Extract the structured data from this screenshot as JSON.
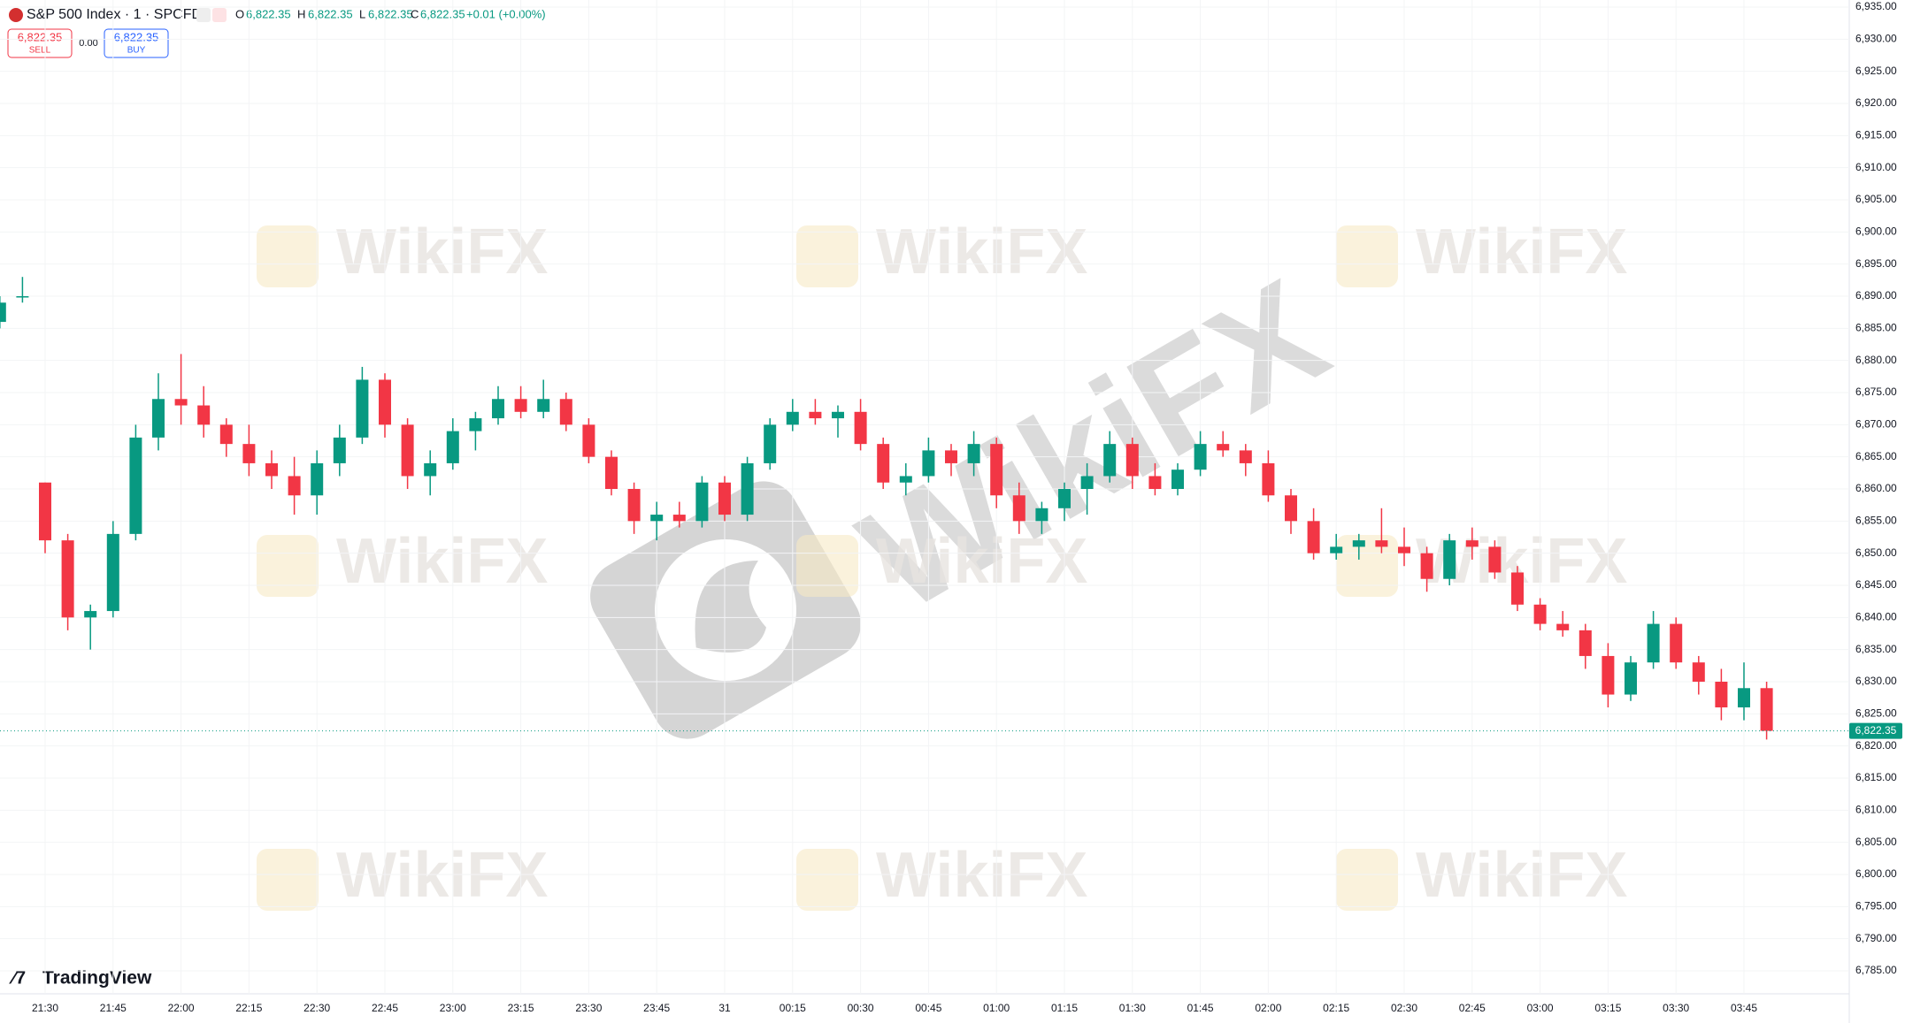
{
  "header": {
    "symbol": "S&P 500 Index · 1 · SPCFD",
    "o_key": "O",
    "open": "6,822.35",
    "h_key": "H",
    "high": "6,822.35",
    "l_key": "L",
    "low": "6,822.35",
    "c_key": "C",
    "close": "6,822.35",
    "change": "+0.01 (+0.00%)",
    "sell_price": "6,822.35",
    "sell": "SELL",
    "spread": "0.00",
    "buy_price": "6,822.35",
    "buy": "BUY"
  },
  "branding": {
    "logo": "TradingView",
    "watermark": "WikiFX"
  },
  "chart_data": {
    "type": "candlestick",
    "up_color": "#089981",
    "down_color": "#f23645",
    "grid": true,
    "last_price": {
      "value": 6822.35,
      "label": "6,822.35"
    },
    "x": [
      "21:20",
      "21:25",
      "21:30",
      "21:35",
      "21:40",
      "21:45",
      "21:50",
      "21:55",
      "22:00",
      "22:05",
      "22:10",
      "22:15",
      "22:20",
      "22:25",
      "22:30",
      "22:35",
      "22:40",
      "22:45",
      "22:50",
      "22:55",
      "23:00",
      "23:05",
      "23:10",
      "23:15",
      "23:20",
      "23:25",
      "23:30",
      "23:35",
      "23:40",
      "23:45",
      "23:50",
      "23:55",
      "00:00",
      "00:05",
      "00:10",
      "00:15",
      "00:20",
      "00:25",
      "00:30",
      "00:35",
      "00:40",
      "00:45",
      "00:50",
      "00:55",
      "01:00",
      "01:05",
      "01:10",
      "01:15",
      "01:20",
      "01:25",
      "01:30",
      "01:35",
      "01:40",
      "01:45",
      "01:50",
      "01:55",
      "02:00",
      "02:05",
      "02:10",
      "02:15",
      "02:20",
      "02:25",
      "02:30",
      "02:35",
      "02:40",
      "02:45",
      "02:50",
      "02:55",
      "03:00",
      "03:05",
      "03:10",
      "03:15",
      "03:20",
      "03:25",
      "03:30",
      "03:35",
      "03:40",
      "03:45",
      "03:50"
    ],
    "ohlc": [
      [
        6886,
        6890,
        6885,
        6889
      ],
      [
        6890,
        6893,
        6889,
        6890
      ],
      [
        6861,
        6861,
        6850,
        6852
      ],
      [
        6852,
        6853,
        6838,
        6840
      ],
      [
        6840,
        6842,
        6835,
        6841
      ],
      [
        6841,
        6855,
        6840,
        6853
      ],
      [
        6853,
        6870,
        6852,
        6868
      ],
      [
        6868,
        6878,
        6866,
        6874
      ],
      [
        6874,
        6881,
        6870,
        6873
      ],
      [
        6873,
        6876,
        6868,
        6870
      ],
      [
        6870,
        6871,
        6865,
        6867
      ],
      [
        6867,
        6870,
        6862,
        6864
      ],
      [
        6864,
        6866,
        6860,
        6862
      ],
      [
        6862,
        6865,
        6856,
        6859
      ],
      [
        6859,
        6866,
        6856,
        6864
      ],
      [
        6864,
        6870,
        6862,
        6868
      ],
      [
        6868,
        6879,
        6867,
        6877
      ],
      [
        6877,
        6878,
        6868,
        6870
      ],
      [
        6870,
        6871,
        6860,
        6862
      ],
      [
        6862,
        6866,
        6859,
        6864
      ],
      [
        6864,
        6871,
        6863,
        6869
      ],
      [
        6869,
        6872,
        6866,
        6871
      ],
      [
        6871,
        6876,
        6870,
        6874
      ],
      [
        6874,
        6876,
        6871,
        6872
      ],
      [
        6872,
        6877,
        6871,
        6874
      ],
      [
        6874,
        6875,
        6869,
        6870
      ],
      [
        6870,
        6871,
        6864,
        6865
      ],
      [
        6865,
        6866,
        6859,
        6860
      ],
      [
        6860,
        6861,
        6853,
        6855
      ],
      [
        6855,
        6858,
        6852,
        6856
      ],
      [
        6856,
        6858,
        6854,
        6855
      ],
      [
        6855,
        6862,
        6854,
        6861
      ],
      [
        6861,
        6862,
        6855,
        6856
      ],
      [
        6856,
        6865,
        6855,
        6864
      ],
      [
        6864,
        6871,
        6863,
        6870
      ],
      [
        6870,
        6874,
        6869,
        6872
      ],
      [
        6872,
        6874,
        6870,
        6871
      ],
      [
        6871,
        6873,
        6868,
        6872
      ],
      [
        6872,
        6874,
        6866,
        6867
      ],
      [
        6867,
        6868,
        6860,
        6861
      ],
      [
        6861,
        6864,
        6859,
        6862
      ],
      [
        6862,
        6868,
        6861,
        6866
      ],
      [
        6866,
        6867,
        6862,
        6864
      ],
      [
        6864,
        6869,
        6862,
        6867
      ],
      [
        6867,
        6868,
        6857,
        6859
      ],
      [
        6859,
        6861,
        6853,
        6855
      ],
      [
        6855,
        6858,
        6853,
        6857
      ],
      [
        6857,
        6861,
        6855,
        6860
      ],
      [
        6860,
        6864,
        6856,
        6862
      ],
      [
        6862,
        6869,
        6861,
        6867
      ],
      [
        6867,
        6868,
        6860,
        6862
      ],
      [
        6862,
        6864,
        6859,
        6860
      ],
      [
        6860,
        6864,
        6859,
        6863
      ],
      [
        6863,
        6869,
        6862,
        6867
      ],
      [
        6867,
        6869,
        6865,
        6866
      ],
      [
        6866,
        6867,
        6862,
        6864
      ],
      [
        6864,
        6866,
        6858,
        6859
      ],
      [
        6859,
        6860,
        6853,
        6855
      ],
      [
        6855,
        6857,
        6849,
        6850
      ],
      [
        6850,
        6853,
        6849,
        6851
      ],
      [
        6851,
        6853,
        6849,
        6852
      ],
      [
        6852,
        6857,
        6850,
        6851
      ],
      [
        6851,
        6854,
        6848,
        6850
      ],
      [
        6850,
        6851,
        6844,
        6846
      ],
      [
        6846,
        6853,
        6845,
        6852
      ],
      [
        6852,
        6854,
        6849,
        6851
      ],
      [
        6851,
        6852,
        6846,
        6847
      ],
      [
        6847,
        6848,
        6841,
        6842
      ],
      [
        6842,
        6843,
        6838,
        6839
      ],
      [
        6839,
        6841,
        6837,
        6838
      ],
      [
        6838,
        6839,
        6832,
        6834
      ],
      [
        6834,
        6836,
        6826,
        6828
      ],
      [
        6828,
        6834,
        6827,
        6833
      ],
      [
        6833,
        6841,
        6832,
        6839
      ],
      [
        6839,
        6840,
        6832,
        6833
      ],
      [
        6833,
        6834,
        6828,
        6830
      ],
      [
        6830,
        6832,
        6824,
        6826
      ],
      [
        6826,
        6833,
        6824,
        6829
      ],
      [
        6829,
        6830,
        6821,
        6822.35
      ]
    ],
    "xticks": [
      "21:30",
      "21:45",
      "22:00",
      "22:15",
      "22:30",
      "22:45",
      "23:00",
      "23:15",
      "23:30",
      "23:45",
      {
        "value": "00:00",
        "label": "31"
      },
      "00:15",
      "00:30",
      "00:45",
      "01:00",
      "01:15",
      "01:30",
      "01:45",
      "02:00",
      "02:15",
      "02:30",
      "02:45",
      "03:00",
      "03:15",
      "03:30",
      "03:45"
    ],
    "ylim": [
      6785,
      6935
    ],
    "yticks": [
      {
        "value": 6785,
        "label": "6,785.00"
      },
      {
        "value": 6790,
        "label": "6,790.00"
      },
      {
        "value": 6795,
        "label": "6,795.00"
      },
      {
        "value": 6800,
        "label": "6,800.00"
      },
      {
        "value": 6805,
        "label": "6,805.00"
      },
      {
        "value": 6810,
        "label": "6,810.00"
      },
      {
        "value": 6815,
        "label": "6,815.00"
      },
      {
        "value": 6820,
        "label": "6,820.00"
      },
      {
        "value": 6825,
        "label": "6,825.00"
      },
      {
        "value": 6830,
        "label": "6,830.00"
      },
      {
        "value": 6835,
        "label": "6,835.00"
      },
      {
        "value": 6840,
        "label": "6,840.00"
      },
      {
        "value": 6845,
        "label": "6,845.00"
      },
      {
        "value": 6850,
        "label": "6,850.00"
      },
      {
        "value": 6855,
        "label": "6,855.00"
      },
      {
        "value": 6860,
        "label": "6,860.00"
      },
      {
        "value": 6865,
        "label": "6,865.00"
      },
      {
        "value": 6870,
        "label": "6,870.00"
      },
      {
        "value": 6875,
        "label": "6,875.00"
      },
      {
        "value": 6880,
        "label": "6,880.00"
      },
      {
        "value": 6885,
        "label": "6,885.00"
      },
      {
        "value": 6890,
        "label": "6,890.00"
      },
      {
        "value": 6895,
        "label": "6,895.00"
      },
      {
        "value": 6900,
        "label": "6,900.00"
      },
      {
        "value": 6905,
        "label": "6,905.00"
      },
      {
        "value": 6910,
        "label": "6,910.00"
      },
      {
        "value": 6915,
        "label": "6,915.00"
      },
      {
        "value": 6920,
        "label": "6,920.00"
      },
      {
        "value": 6925,
        "label": "6,925.00"
      },
      {
        "value": 6930,
        "label": "6,930.00"
      },
      {
        "value": 6935,
        "label": "6,935.00"
      }
    ]
  }
}
